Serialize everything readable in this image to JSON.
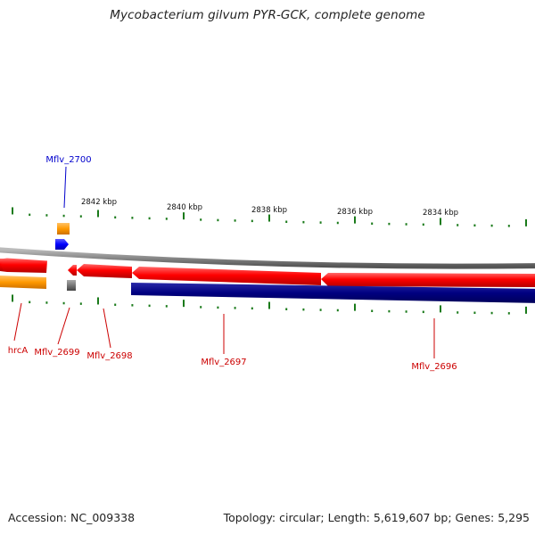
{
  "title": "Mycobacterium gilvum PYR-GCK, complete genome",
  "footer": {
    "accession": "Accession: NC_009338",
    "summary": "Topology: circular; Length: 5,619,607 bp; Genes: 5,295"
  },
  "coordinates": [
    "2842 kbp",
    "2840 kbp",
    "2838 kbp",
    "2836 kbp",
    "2834 kbp"
  ],
  "genes": [
    {
      "id": "Mflv_2700",
      "color": "#0000cc"
    },
    {
      "id": "hrcA",
      "color": "#cc0000"
    },
    {
      "id": "Mflv_2699",
      "color": "#cc0000"
    },
    {
      "id": "Mflv_2698",
      "color": "#cc0000"
    },
    {
      "id": "Mflv_2697",
      "color": "#cc0000"
    },
    {
      "id": "Mflv_2696",
      "color": "#cc0000"
    }
  ],
  "colors": {
    "cds_forward": "#ff0000",
    "cds_reverse_blue": "#000080",
    "rna": "#ff9900",
    "backbone": "#888888",
    "ticks": "#1a7a1a"
  }
}
